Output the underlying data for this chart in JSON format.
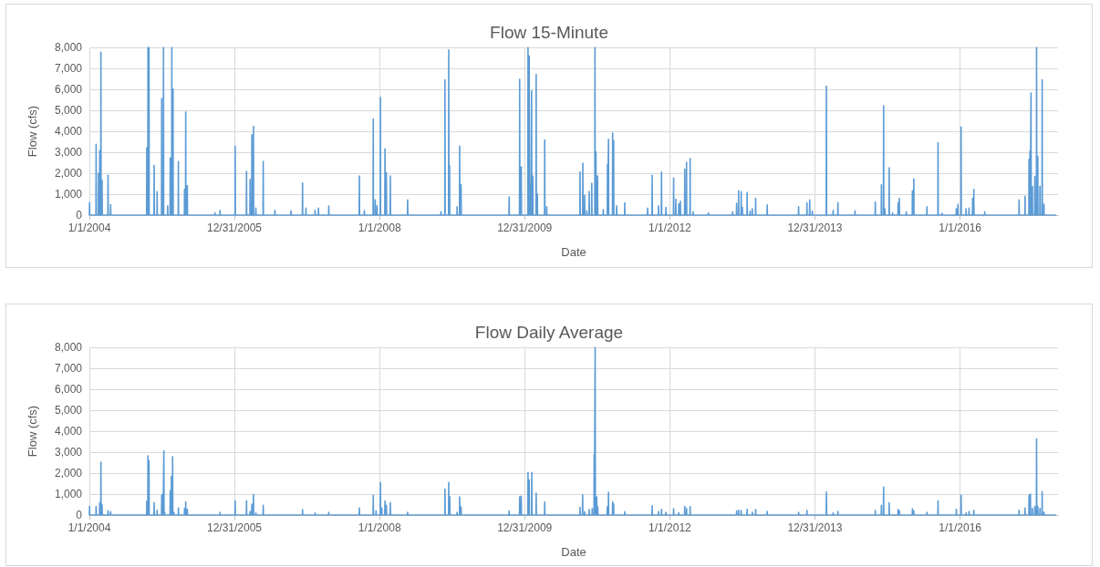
{
  "chart_data": [
    {
      "type": "line",
      "title": "Flow 15-Minute",
      "xlabel": "Date",
      "ylabel": "Flow (cfs)",
      "x": [
        "2004-01-01",
        "2004-01-02",
        "2004-01-03",
        "2004-02-03",
        "2004-02-04",
        "2004-02-05",
        "2004-02-15",
        "2004-02-16",
        "2004-02-17",
        "2004-02-21",
        "2004-02-22",
        "2004-02-23",
        "2004-02-27",
        "2004-02-28",
        "2004-02-29",
        "2004-03-04",
        "2004-03-05",
        "2004-03-06",
        "2004-04-03",
        "2004-04-04",
        "2004-04-05",
        "2004-04-16",
        "2004-04-17",
        "2004-04-18",
        "2004-10-15",
        "2004-10-16",
        "2004-10-17",
        "2004-10-21",
        "2004-10-22",
        "2004-10-23",
        "2004-10-26",
        "2004-10-27",
        "2004-10-28",
        "2004-11-21",
        "2004-11-22",
        "2004-11-23",
        "2004-12-06",
        "2004-12-07",
        "2004-12-08",
        "2004-12-29",
        "2004-12-30",
        "2004-12-31",
        "2005-01-07",
        "2005-01-08",
        "2005-01-09",
        "2005-01-28",
        "2005-01-29",
        "2005-01-30",
        "2005-02-10",
        "2005-02-11",
        "2005-02-12",
        "2005-02-18",
        "2005-02-19",
        "2005-02-20",
        "2005-02-24",
        "2005-02-25",
        "2005-02-26",
        "2005-03-23",
        "2005-03-24",
        "2005-03-25",
        "2005-04-23",
        "2005-04-24",
        "2005-04-25",
        "2005-04-29",
        "2005-04-30",
        "2005-05-01",
        "2005-05-07",
        "2005-05-08",
        "2005-05-09",
        "2005-09-23",
        "2005-09-24",
        "2005-09-25",
        "2005-10-19",
        "2005-10-20",
        "2005-10-21",
        "2006-01-03",
        "2006-01-04",
        "2006-01-05",
        "2006-03-01",
        "2006-03-02",
        "2006-03-03",
        "2006-03-19",
        "2006-03-20",
        "2006-03-21",
        "2006-03-28",
        "2006-03-29",
        "2006-03-30",
        "2006-04-05",
        "2006-04-06",
        "2006-04-07",
        "2006-04-17",
        "2006-04-18",
        "2006-04-19",
        "2006-05-24",
        "2006-05-25",
        "2006-05-26",
        "2006-07-22",
        "2006-07-23",
        "2006-07-24",
        "2006-10-11",
        "2006-10-12",
        "2006-10-13",
        "2006-12-08",
        "2006-12-09",
        "2006-12-10",
        "2006-12-25",
        "2006-12-26",
        "2006-12-27",
        "2007-02-09",
        "2007-02-10",
        "2007-02-11",
        "2007-02-26",
        "2007-02-27",
        "2007-02-28",
        "2007-04-19",
        "2007-04-20",
        "2007-04-21",
        "2007-09-20",
        "2007-09-21",
        "2007-09-22",
        "2007-10-15",
        "2007-10-16",
        "2007-10-17",
        "2007-11-29",
        "2007-11-30",
        "2007-12-01",
        "2007-12-09",
        "2007-12-10",
        "2007-12-11",
        "2007-12-18",
        "2007-12-19",
        "2007-12-20",
        "2008-01-04",
        "2008-01-05",
        "2008-01-06",
        "2008-01-27",
        "2008-01-28",
        "2008-01-29",
        "2008-02-03",
        "2008-02-04",
        "2008-02-05",
        "2008-02-23",
        "2008-02-24",
        "2008-02-25",
        "2008-05-20",
        "2008-05-21",
        "2008-05-22",
        "2008-11-04",
        "2008-11-05",
        "2008-11-06",
        "2008-11-24",
        "2008-11-25",
        "2008-11-26",
        "2008-12-13",
        "2008-12-14",
        "2008-12-15",
        "2008-12-17",
        "2008-12-18",
        "2008-12-19",
        "2009-01-24",
        "2009-01-25",
        "2009-01-26",
        "2009-02-06",
        "2009-02-07",
        "2009-02-08",
        "2009-02-13",
        "2009-02-14",
        "2009-02-15",
        "2009-10-13",
        "2009-10-14",
        "2009-10-15",
        "2009-12-05",
        "2009-12-06",
        "2009-12-07",
        "2009-12-13",
        "2009-12-14",
        "2009-12-15",
        "2010-01-16",
        "2010-01-17",
        "2010-01-18",
        "2010-01-22",
        "2010-01-23",
        "2010-01-24",
        "2010-01-29",
        "2010-01-30",
        "2010-01-31",
        "2010-02-03",
        "2010-02-04",
        "2010-02-05",
        "2010-02-09",
        "2010-02-10",
        "2010-02-11",
        "2010-02-26",
        "2010-02-27",
        "2010-02-28",
        "2010-03-04",
        "2010-03-05",
        "2010-03-06",
        "2010-04-10",
        "2010-04-11",
        "2010-04-12",
        "2010-04-20",
        "2010-04-21",
        "2010-04-22",
        "2010-10-05",
        "2010-10-06",
        "2010-10-07",
        "2010-10-19",
        "2010-10-20",
        "2010-10-21",
        "2010-10-28",
        "2010-10-29",
        "2010-10-30",
        "2010-11-08",
        "2010-11-09",
        "2010-11-10",
        "2010-11-20",
        "2010-11-21",
        "2010-11-22",
        "2010-12-03",
        "2010-12-04",
        "2010-12-05",
        "2010-12-19",
        "2010-12-20",
        "2010-12-21",
        "2010-12-24",
        "2010-12-25",
        "2010-12-26",
        "2011-01-01",
        "2011-01-02",
        "2011-01-03",
        "2011-01-30",
        "2011-01-31",
        "2011-02-01",
        "2011-02-20",
        "2011-02-21",
        "2011-02-22",
        "2011-02-25",
        "2011-02-26",
        "2011-02-27",
        "2011-03-18",
        "2011-03-19",
        "2011-03-20",
        "2011-03-23",
        "2011-03-24",
        "2011-03-25",
        "2011-04-07",
        "2011-04-08",
        "2011-04-09",
        "2011-05-18",
        "2011-05-19",
        "2011-05-20",
        "2011-09-10",
        "2011-09-11",
        "2011-09-12",
        "2011-10-03",
        "2011-10-04",
        "2011-10-05",
        "2011-11-04",
        "2011-11-05",
        "2011-11-06",
        "2011-11-19",
        "2011-11-20",
        "2011-11-21",
        "2011-12-11",
        "2011-12-12",
        "2011-12-13",
        "2012-01-19",
        "2012-01-20",
        "2012-01-21",
        "2012-01-30",
        "2012-01-31",
        "2012-02-01",
        "2012-02-14",
        "2012-02-15",
        "2012-02-16",
        "2012-02-22",
        "2012-02-23",
        "2012-02-24",
        "2012-03-15",
        "2012-03-16",
        "2012-03-17",
        "2012-03-24",
        "2012-03-25",
        "2012-03-26",
        "2012-04-11",
        "2012-04-12",
        "2012-04-13",
        "2012-04-26",
        "2012-04-27",
        "2012-04-28",
        "2012-07-12",
        "2012-07-13",
        "2012-07-14",
        "2012-11-11",
        "2012-11-12",
        "2012-11-13",
        "2012-12-01",
        "2012-12-02",
        "2012-12-03",
        "2012-12-11",
        "2012-12-12",
        "2012-12-13",
        "2012-12-24",
        "2012-12-25",
        "2012-12-26",
        "2012-12-30",
        "2012-12-31",
        "2013-01-01",
        "2013-01-23",
        "2013-01-24",
        "2013-01-25",
        "2013-02-07",
        "2013-02-08",
        "2013-02-09",
        "2013-02-18",
        "2013-02-19",
        "2013-02-20",
        "2013-03-07",
        "2013-03-08",
        "2013-03-09",
        "2013-05-04",
        "2013-05-05",
        "2013-05-06",
        "2013-10-09",
        "2013-10-10",
        "2013-10-11",
        "2013-11-20",
        "2013-11-21",
        "2013-11-22",
        "2013-12-04",
        "2013-12-05",
        "2013-12-06",
        "2013-12-17",
        "2013-12-18",
        "2013-12-19",
        "2014-02-26",
        "2014-02-27",
        "2014-02-28",
        "2014-04-01",
        "2014-04-02",
        "2014-04-03",
        "2014-04-25",
        "2014-04-26",
        "2014-04-27",
        "2014-07-20",
        "2014-07-21",
        "2014-07-22",
        "2014-10-30",
        "2014-10-31",
        "2014-11-01",
        "2014-11-30",
        "2014-12-01",
        "2014-12-02",
        "2014-12-11",
        "2014-12-12",
        "2014-12-13",
        "2014-12-17",
        "2014-12-18",
        "2014-12-19",
        "2015-01-08",
        "2015-01-09",
        "2015-01-10",
        "2015-01-25",
        "2015-01-26",
        "2015-01-27",
        "2015-02-22",
        "2015-02-23",
        "2015-02-24",
        "2015-02-28",
        "2015-03-01",
        "2015-03-02",
        "2015-04-04",
        "2015-04-05",
        "2015-04-06",
        "2015-05-05",
        "2015-05-06",
        "2015-05-07",
        "2015-05-12",
        "2015-05-13",
        "2015-05-14",
        "2015-07-17",
        "2015-07-18",
        "2015-07-19",
        "2015-09-11",
        "2015-09-12",
        "2015-09-13",
        "2015-10-01",
        "2015-10-02",
        "2015-10-03",
        "2015-12-12",
        "2015-12-13",
        "2015-12-14",
        "2015-12-20",
        "2015-12-21",
        "2015-12-22",
        "2016-01-05",
        "2016-01-06",
        "2016-01-07",
        "2016-01-30",
        "2016-01-31",
        "2016-02-01",
        "2016-02-14",
        "2016-02-15",
        "2016-02-16",
        "2016-03-03",
        "2016-03-04",
        "2016-03-05",
        "2016-03-09",
        "2016-03-10",
        "2016-03-11",
        "2016-05-03",
        "2016-05-04",
        "2016-05-05",
        "2016-10-23",
        "2016-10-24",
        "2016-10-25",
        "2016-11-22",
        "2016-11-23",
        "2016-11-24",
        "2016-12-12",
        "2016-12-13",
        "2016-12-14",
        "2016-12-17",
        "2016-12-18",
        "2016-12-19",
        "2016-12-22",
        "2016-12-23",
        "2016-12-24",
        "2016-12-29",
        "2016-12-30",
        "2016-12-31",
        "2017-01-10",
        "2017-01-11",
        "2017-01-12",
        "2017-01-19",
        "2017-01-20",
        "2017-01-21",
        "2017-01-25",
        "2017-01-26",
        "2017-01-27",
        "2017-02-05",
        "2017-02-06",
        "2017-02-07",
        "2017-02-16",
        "2017-02-17",
        "2017-02-18",
        "2017-02-25",
        "2017-02-26",
        "2017-02-27",
        "2017-04-25"
      ],
      "series": [
        {
          "color": "#5b9bd5",
          "values": [
            0,
            600,
            0,
            0,
            3380,
            0,
            0,
            2000,
            0,
            0,
            3090,
            0,
            0,
            7770,
            0,
            0,
            1660,
            0,
            0,
            1900,
            0,
            0,
            500,
            0,
            0,
            3200,
            0,
            0,
            8000,
            0,
            0,
            8000,
            0,
            0,
            2370,
            0,
            0,
            1120,
            0,
            0,
            5560,
            0,
            0,
            8000,
            0,
            0,
            440,
            0,
            0,
            2730,
            0,
            0,
            8000,
            0,
            0,
            6020,
            0,
            0,
            2550,
            0,
            0,
            1230,
            0,
            0,
            4920,
            0,
            0,
            1400,
            0,
            0,
            110,
            0,
            0,
            230,
            0,
            0,
            3290,
            0,
            0,
            2090,
            0,
            0,
            1700,
            0,
            0,
            3830,
            0,
            0,
            4230,
            0,
            0,
            340,
            0,
            0,
            2560,
            0,
            0,
            230,
            0,
            0,
            200,
            0,
            0,
            1530,
            0,
            0,
            330,
            0,
            0,
            230,
            0,
            0,
            340,
            0,
            0,
            430,
            0,
            0,
            1870,
            0,
            0,
            210,
            0,
            0,
            4590,
            0,
            0,
            730,
            0,
            0,
            440,
            0,
            0,
            5620,
            0,
            0,
            3160,
            0,
            0,
            2020,
            0,
            0,
            1870,
            0,
            0,
            730,
            0,
            0,
            160,
            0,
            0,
            6450,
            0,
            0,
            7880,
            0,
            0,
            2370,
            0,
            0,
            400,
            0,
            0,
            3290,
            0,
            0,
            1440,
            0,
            0,
            870,
            0,
            0,
            6480,
            0,
            0,
            2300,
            0,
            0,
            8000,
            0,
            0,
            7600,
            0,
            0,
            1520,
            0,
            0,
            5920,
            0,
            0,
            1870,
            0,
            0,
            6700,
            0,
            0,
            1020,
            0,
            0,
            3590,
            0,
            0,
            400,
            0,
            0,
            2060,
            0,
            0,
            2480,
            0,
            0,
            940,
            0,
            0,
            200,
            0,
            0,
            1130,
            0,
            0,
            1520,
            0,
            0,
            8000,
            0,
            0,
            3020,
            0,
            0,
            1870,
            0,
            0,
            260,
            0,
            0,
            2420,
            0,
            0,
            3620,
            0,
            0,
            3910,
            0,
            0,
            3550,
            0,
            0,
            440,
            0,
            0,
            590,
            0,
            0,
            330,
            0,
            0,
            1900,
            0,
            0,
            440,
            0,
            0,
            2050,
            0,
            0,
            370,
            0,
            0,
            1770,
            0,
            0,
            760,
            0,
            0,
            540,
            0,
            0,
            660,
            0,
            0,
            2190,
            0,
            0,
            2520,
            0,
            0,
            2700,
            0,
            0,
            160,
            0,
            0,
            110,
            0,
            0,
            160,
            0,
            0,
            560,
            0,
            0,
            1160,
            0,
            0,
            1120,
            0,
            0,
            370,
            0,
            0,
            1090,
            0,
            0,
            190,
            0,
            0,
            300,
            0,
            0,
            800,
            0,
            0,
            490,
            0,
            0,
            400,
            0,
            0,
            590,
            0,
            0,
            730,
            0,
            0,
            190,
            0,
            0,
            6150,
            0,
            0,
            230,
            0,
            0,
            600,
            0,
            0,
            200,
            0,
            0,
            630,
            0,
            0,
            1440,
            0,
            0,
            5210,
            0,
            0,
            300,
            0,
            0,
            2260,
            0,
            0,
            110,
            0,
            0,
            590,
            0,
            0,
            800,
            0,
            0,
            160,
            0,
            0,
            1160,
            0,
            0,
            1730,
            0,
            0,
            400,
            0,
            0,
            3450,
            0,
            0,
            90,
            0,
            0,
            300,
            0,
            0,
            520,
            0,
            0,
            4190,
            0,
            0,
            300,
            0,
            0,
            330,
            0,
            0,
            800,
            0,
            0,
            1230,
            0,
            0,
            160,
            0,
            0,
            730,
            0,
            0,
            900,
            0,
            0,
            2660,
            0,
            0,
            3060,
            0,
            0,
            5820,
            0,
            0,
            1370,
            0,
            0,
            1830,
            0,
            0,
            8000,
            0,
            0,
            2800,
            0,
            0,
            1370,
            0,
            0,
            6450,
            0,
            0,
            520,
            0,
            0
          ]
        }
      ],
      "xlim": [
        "2004-01-01",
        "2017-05-08"
      ],
      "xticks": [
        {
          "value": "2004-01-01",
          "label": "1/1/2004"
        },
        {
          "value": "2005-12-31",
          "label": "12/31/2005"
        },
        {
          "value": "2008-01-01",
          "label": "1/1/2008"
        },
        {
          "value": "2009-12-31",
          "label": "12/31/2009"
        },
        {
          "value": "2012-01-01",
          "label": "1/1/2012"
        },
        {
          "value": "2013-12-31",
          "label": "12/31/2013"
        },
        {
          "value": "2016-01-01",
          "label": "1/1/2016"
        }
      ],
      "ylim": [
        0,
        8000
      ],
      "yticks": [
        0,
        {
          "value": 1000,
          "label": "1,000"
        },
        {
          "value": 2000,
          "label": "2,000"
        },
        {
          "value": 3000,
          "label": "3,000"
        },
        {
          "value": 4000,
          "label": "4,000"
        },
        {
          "value": 5000,
          "label": "5,000"
        },
        {
          "value": 6000,
          "label": "6,000"
        },
        {
          "value": 7000,
          "label": "7,000"
        },
        {
          "value": 8000,
          "label": "8,000"
        }
      ],
      "grid": true,
      "marker": "none"
    },
    {
      "type": "line",
      "title": "Flow Daily Average",
      "xlabel": "Date",
      "ylabel": "Flow (cfs)",
      "x": [
        "2004-01-01",
        "2004-01-02",
        "2004-01-03",
        "2004-02-03",
        "2004-02-04",
        "2004-02-05",
        "2004-02-21",
        "2004-02-22",
        "2004-02-23",
        "2004-02-27",
        "2004-02-28",
        "2004-02-29",
        "2004-03-04",
        "2004-03-05",
        "2004-03-06",
        "2004-04-03",
        "2004-04-04",
        "2004-04-05",
        "2004-04-16",
        "2004-04-17",
        "2004-04-18",
        "2004-10-15",
        "2004-10-16",
        "2004-10-17",
        "2004-10-21",
        "2004-10-22",
        "2004-10-23",
        "2004-10-26",
        "2004-10-27",
        "2004-10-28",
        "2004-11-21",
        "2004-11-22",
        "2004-11-23",
        "2004-12-06",
        "2004-12-07",
        "2004-12-08",
        "2004-12-29",
        "2004-12-30",
        "2004-12-31",
        "2005-01-04",
        "2005-01-05",
        "2005-01-06",
        "2005-01-09",
        "2005-01-10",
        "2005-01-11",
        "2005-01-13",
        "2005-01-14",
        "2005-01-15",
        "2005-02-10",
        "2005-02-11",
        "2005-02-12",
        "2005-02-16",
        "2005-02-17",
        "2005-02-18",
        "2005-02-22",
        "2005-02-23",
        "2005-02-24",
        "2005-02-28",
        "2005-03-01",
        "2005-03-02",
        "2005-03-23",
        "2005-03-24",
        "2005-03-25",
        "2005-04-23",
        "2005-04-24",
        "2005-04-25",
        "2005-04-29",
        "2005-04-30",
        "2005-05-01",
        "2005-05-07",
        "2005-05-08",
        "2005-05-09",
        "2005-10-19",
        "2005-10-20",
        "2005-10-21",
        "2006-01-03",
        "2006-01-04",
        "2006-01-05",
        "2006-03-01",
        "2006-03-02",
        "2006-03-03",
        "2006-03-19",
        "2006-03-20",
        "2006-03-21",
        "2006-03-28",
        "2006-03-29",
        "2006-03-30",
        "2006-04-05",
        "2006-04-06",
        "2006-04-07",
        "2006-04-17",
        "2006-04-18",
        "2006-04-19",
        "2006-05-24",
        "2006-05-25",
        "2006-05-26",
        "2006-12-08",
        "2006-12-09",
        "2006-12-10",
        "2007-02-09",
        "2007-02-10",
        "2007-02-11",
        "2007-04-19",
        "2007-04-20",
        "2007-04-21",
        "2007-09-20",
        "2007-09-21",
        "2007-09-22",
        "2007-11-29",
        "2007-11-30",
        "2007-12-01",
        "2007-12-13",
        "2007-12-14",
        "2007-12-15",
        "2008-01-04",
        "2008-01-05",
        "2008-01-06",
        "2008-01-11",
        "2008-01-12",
        "2008-01-13",
        "2008-01-27",
        "2008-01-28",
        "2008-01-29",
        "2008-02-03",
        "2008-02-04",
        "2008-02-05",
        "2008-02-23",
        "2008-02-24",
        "2008-02-25",
        "2008-05-20",
        "2008-05-21",
        "2008-05-22",
        "2008-11-24",
        "2008-11-25",
        "2008-11-26",
        "2008-12-13",
        "2008-12-14",
        "2008-12-15",
        "2008-12-18",
        "2008-12-19",
        "2008-12-20",
        "2009-01-24",
        "2009-01-25",
        "2009-01-26",
        "2009-02-06",
        "2009-02-07",
        "2009-02-08",
        "2009-02-13",
        "2009-02-14",
        "2009-02-15",
        "2009-10-13",
        "2009-10-14",
        "2009-10-15",
        "2009-12-05",
        "2009-12-06",
        "2009-12-07",
        "2009-12-13",
        "2009-12-14",
        "2009-12-15",
        "2010-01-16",
        "2010-01-17",
        "2010-01-18",
        "2010-01-22",
        "2010-01-23",
        "2010-01-24",
        "2010-02-04",
        "2010-02-05",
        "2010-02-06",
        "2010-02-26",
        "2010-02-27",
        "2010-02-28",
        "2010-04-10",
        "2010-04-11",
        "2010-04-12",
        "2010-10-05",
        "2010-10-06",
        "2010-10-07",
        "2010-10-18",
        "2010-10-19",
        "2010-10-20",
        "2010-10-28",
        "2010-10-29",
        "2010-10-30",
        "2010-11-20",
        "2010-11-21",
        "2010-11-22",
        "2010-12-05",
        "2010-12-06",
        "2010-12-07",
        "2010-12-15",
        "2010-12-16",
        "2010-12-17",
        "2010-12-20",
        "2010-12-21",
        "2010-12-22",
        "2010-12-28",
        "2010-12-29",
        "2010-12-30",
        "2011-01-02",
        "2011-01-03",
        "2011-01-04",
        "2011-02-19",
        "2011-02-20",
        "2011-02-21",
        "2011-02-25",
        "2011-02-26",
        "2011-02-27",
        "2011-03-18",
        "2011-03-19",
        "2011-03-20",
        "2011-03-23",
        "2011-03-24",
        "2011-03-25",
        "2011-05-18",
        "2011-05-19",
        "2011-05-20",
        "2011-10-03",
        "2011-10-04",
        "2011-10-05",
        "2011-11-04",
        "2011-11-05",
        "2011-11-06",
        "2011-11-19",
        "2011-11-20",
        "2011-11-21",
        "2011-12-11",
        "2011-12-12",
        "2011-12-13",
        "2012-01-19",
        "2012-01-20",
        "2012-01-21",
        "2012-02-14",
        "2012-02-15",
        "2012-02-16",
        "2012-03-15",
        "2012-03-16",
        "2012-03-17",
        "2012-03-24",
        "2012-03-25",
        "2012-03-26",
        "2012-04-11",
        "2012-04-12",
        "2012-04-13",
        "2012-12-01",
        "2012-12-02",
        "2012-12-03",
        "2012-12-11",
        "2012-12-12",
        "2012-12-13",
        "2012-12-24",
        "2012-12-25",
        "2012-12-26",
        "2013-01-23",
        "2013-01-24",
        "2013-01-25",
        "2013-02-18",
        "2013-02-19",
        "2013-02-20",
        "2013-03-07",
        "2013-03-08",
        "2013-03-09",
        "2013-05-04",
        "2013-05-05",
        "2013-05-06",
        "2013-10-09",
        "2013-10-10",
        "2013-10-11",
        "2013-11-20",
        "2013-11-21",
        "2013-11-22",
        "2014-02-26",
        "2014-02-27",
        "2014-02-28",
        "2014-04-01",
        "2014-04-02",
        "2014-04-03",
        "2014-04-25",
        "2014-04-26",
        "2014-04-27",
        "2014-10-30",
        "2014-10-31",
        "2014-11-01",
        "2014-11-30",
        "2014-12-01",
        "2014-12-02",
        "2014-12-11",
        "2014-12-12",
        "2014-12-13",
        "2015-01-08",
        "2015-01-09",
        "2015-01-10",
        "2015-02-22",
        "2015-02-23",
        "2015-02-24",
        "2015-02-28",
        "2015-03-01",
        "2015-03-02",
        "2015-05-05",
        "2015-05-06",
        "2015-05-07",
        "2015-05-12",
        "2015-05-13",
        "2015-05-14",
        "2015-07-17",
        "2015-07-18",
        "2015-07-19",
        "2015-09-11",
        "2015-09-12",
        "2015-09-13",
        "2015-12-12",
        "2015-12-13",
        "2015-12-14",
        "2016-01-05",
        "2016-01-06",
        "2016-01-07",
        "2016-01-30",
        "2016-01-31",
        "2016-02-01",
        "2016-02-14",
        "2016-02-15",
        "2016-02-16",
        "2016-03-09",
        "2016-03-10",
        "2016-03-11",
        "2016-10-23",
        "2016-10-24",
        "2016-10-25",
        "2016-11-22",
        "2016-11-23",
        "2016-11-24",
        "2016-12-12",
        "2016-12-13",
        "2016-12-14",
        "2016-12-19",
        "2016-12-20",
        "2016-12-21",
        "2016-12-29",
        "2016-12-30",
        "2016-12-31",
        "2017-01-10",
        "2017-01-11",
        "2017-01-12",
        "2017-01-19",
        "2017-01-20",
        "2017-01-21",
        "2017-01-25",
        "2017-01-26",
        "2017-01-27",
        "2017-02-05",
        "2017-02-06",
        "2017-02-07",
        "2017-02-16",
        "2017-02-17",
        "2017-02-18",
        "2017-02-25",
        "2017-02-26",
        "2017-02-27",
        "2017-04-25"
      ],
      "series": [
        {
          "color": "#5b9bd5",
          "values": [
            0,
            410,
            0,
            0,
            410,
            0,
            0,
            590,
            0,
            0,
            2520,
            0,
            0,
            490,
            0,
            0,
            200,
            0,
            0,
            160,
            0,
            0,
            660,
            0,
            0,
            2820,
            0,
            0,
            2590,
            0,
            0,
            600,
            0,
            0,
            230,
            0,
            0,
            940,
            0,
            0,
            1030,
            0,
            0,
            3060,
            0,
            0,
            130,
            0,
            0,
            1160,
            0,
            0,
            1850,
            0,
            0,
            2780,
            0,
            0,
            130,
            0,
            0,
            330,
            0,
            0,
            310,
            0,
            0,
            630,
            0,
            0,
            270,
            0,
            0,
            130,
            0,
            0,
            670,
            0,
            0,
            670,
            0,
            0,
            170,
            0,
            0,
            520,
            0,
            0,
            990,
            0,
            0,
            100,
            0,
            0,
            470,
            0,
            0,
            260,
            0,
            0,
            100,
            0,
            0,
            130,
            0,
            0,
            340,
            0,
            0,
            940,
            0,
            0,
            200,
            0,
            0,
            1550,
            0,
            0,
            330,
            0,
            0,
            670,
            0,
            0,
            460,
            0,
            0,
            590,
            0,
            0,
            130,
            0,
            0,
            1240,
            0,
            0,
            1550,
            0,
            0,
            870,
            0,
            0,
            130,
            0,
            0,
            870,
            0,
            0,
            390,
            0,
            0,
            190,
            0,
            0,
            870,
            0,
            0,
            900,
            0,
            0,
            2030,
            0,
            0,
            1670,
            0,
            0,
            2030,
            0,
            0,
            1040,
            0,
            0,
            620,
            0,
            0,
            370,
            0,
            0,
            970,
            0,
            0,
            160,
            0,
            0,
            260,
            0,
            0,
            300,
            0,
            0,
            2880,
            0,
            0,
            8000,
            0,
            0,
            870,
            0,
            0,
            390,
            0,
            0,
            390,
            0,
            0,
            1090,
            0,
            0,
            640,
            0,
            0,
            530,
            0,
            0,
            160,
            0,
            0,
            440,
            0,
            0,
            160,
            0,
            0,
            270,
            0,
            0,
            130,
            0,
            0,
            300,
            0,
            0,
            110,
            0,
            0,
            410,
            0,
            0,
            310,
            0,
            0,
            400,
            0,
            0,
            190,
            0,
            0,
            240,
            0,
            0,
            210,
            0,
            0,
            270,
            0,
            0,
            130,
            0,
            0,
            260,
            0,
            0,
            170,
            0,
            0,
            130,
            0,
            0,
            230,
            0,
            0,
            1100,
            0,
            0,
            100,
            0,
            0,
            170,
            0,
            0,
            210,
            0,
            0,
            470,
            0,
            0,
            1330,
            0,
            0,
            590,
            0,
            0,
            260,
            0,
            0,
            210,
            0,
            0,
            300,
            0,
            0,
            200,
            0,
            0,
            130,
            0,
            0,
            670,
            0,
            0,
            270,
            0,
            0,
            940,
            0,
            0,
            100,
            0,
            0,
            170,
            0,
            0,
            230,
            0,
            0,
            230,
            0,
            0,
            340,
            0,
            0,
            940,
            0,
            0,
            1000,
            0,
            0,
            310,
            0,
            0,
            410,
            0,
            0,
            3630,
            0,
            0,
            410,
            0,
            0,
            310,
            0,
            0,
            1120,
            0,
            0,
            140,
            0,
            0
          ]
        }
      ],
      "xlim": [
        "2004-01-01",
        "2017-05-08"
      ],
      "xticks": [
        {
          "value": "2004-01-01",
          "label": "1/1/2004"
        },
        {
          "value": "2005-12-31",
          "label": "12/31/2005"
        },
        {
          "value": "2008-01-01",
          "label": "1/1/2008"
        },
        {
          "value": "2009-12-31",
          "label": "12/31/2009"
        },
        {
          "value": "2012-01-01",
          "label": "1/1/2012"
        },
        {
          "value": "2013-12-31",
          "label": "12/31/2013"
        },
        {
          "value": "2016-01-01",
          "label": "1/1/2016"
        }
      ],
      "ylim": [
        0,
        8000
      ],
      "yticks": [
        0,
        {
          "value": 1000,
          "label": "1,000"
        },
        {
          "value": 2000,
          "label": "2,000"
        },
        {
          "value": 3000,
          "label": "3,000"
        },
        {
          "value": 4000,
          "label": "4,000"
        },
        {
          "value": 5000,
          "label": "5,000"
        },
        {
          "value": 6000,
          "label": "6,000"
        },
        {
          "value": 7000,
          "label": "7,000"
        },
        {
          "value": 8000,
          "label": "8,000"
        }
      ],
      "grid": true,
      "marker": "none"
    }
  ]
}
